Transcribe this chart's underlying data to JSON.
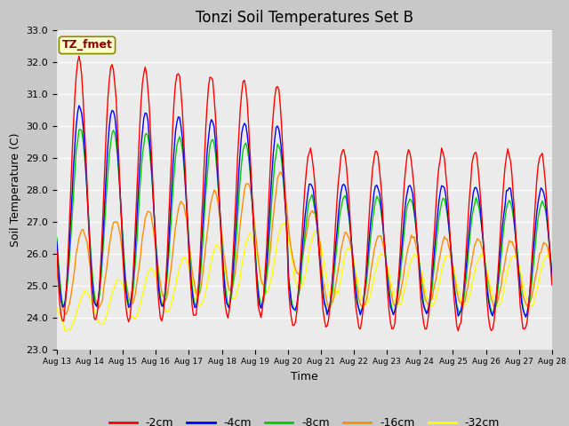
{
  "title": "Tonzi Soil Temperatures Set B",
  "xlabel": "Time",
  "ylabel": "Soil Temperature (C)",
  "annotation": "TZ_fmet",
  "ylim": [
    23.0,
    33.0
  ],
  "yticks": [
    23.0,
    24.0,
    25.0,
    26.0,
    27.0,
    28.0,
    29.0,
    30.0,
    31.0,
    32.0,
    33.0
  ],
  "xtick_labels": [
    "Aug 13",
    "Aug 14",
    "Aug 15",
    "Aug 16",
    "Aug 17",
    "Aug 18",
    "Aug 19",
    "Aug 20",
    "Aug 21",
    "Aug 22",
    "Aug 23",
    "Aug 24",
    "Aug 25",
    "Aug 26",
    "Aug 27",
    "Aug 28"
  ],
  "legend_labels": [
    "-2cm",
    "-4cm",
    "-8cm",
    "-16cm",
    "-32cm"
  ],
  "line_colors": [
    "#ff0000",
    "#0000ff",
    "#00cc00",
    "#ff8c00",
    "#ffff00"
  ],
  "background_color": "#ebebeb",
  "title_fontsize": 12,
  "axis_fontsize": 9,
  "tick_fontsize": 8,
  "legend_fontsize": 9
}
